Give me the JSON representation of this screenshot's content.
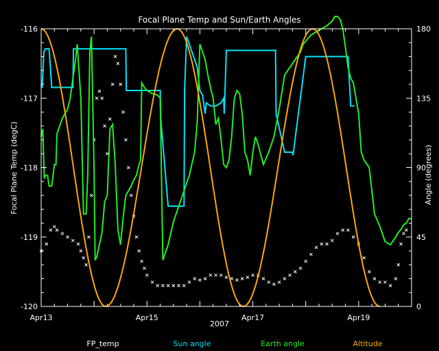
{
  "chart_data": {
    "type": "line",
    "title": "Focal Plane Temp and Sun/Earth Angles",
    "xlabel": "2007",
    "ylabel_left": "Focal Plane Temp (degC)",
    "ylabel_right": "Angle (degrees)",
    "ylim_left": [
      -120,
      -116
    ],
    "ylim_right": [
      0,
      180
    ],
    "xlim_days": [
      13.0,
      20.0
    ],
    "x_ticks": [
      {
        "label": "Apr13",
        "day": 13
      },
      {
        "label": "Apr15",
        "day": 15
      },
      {
        "label": "Apr17",
        "day": 17
      },
      {
        "label": "Apr19",
        "day": 19
      }
    ],
    "y_ticks_left": [
      {
        "label": "-116",
        "value": -116
      },
      {
        "label": "-117",
        "value": -117
      },
      {
        "label": "-118",
        "value": -118
      },
      {
        "label": "-119",
        "value": -119
      },
      {
        "label": "-120",
        "value": -120
      }
    ],
    "y_ticks_right": [
      {
        "label": "180",
        "value": 180
      },
      {
        "label": "135",
        "value": 135
      },
      {
        "label": "90",
        "value": 90
      },
      {
        "label": "45",
        "value": 45
      },
      {
        "label": "0",
        "value": 0
      }
    ],
    "colors": {
      "background": "#000000",
      "axis": "#ffffff",
      "fp_temp": "#ffffff",
      "sun": "#00e5ff",
      "earth": "#22ee22",
      "altitude": "#ffaa00"
    },
    "legend": {
      "placement": "bottom",
      "items": [
        {
          "label": "FP_temp",
          "color": "#ffffff"
        },
        {
          "label": "Sun angle",
          "color": "#00e5ff"
        },
        {
          "label": "Earth angle",
          "color": "#22ee22"
        },
        {
          "label": "Altitude",
          "color": "#ffaa00"
        }
      ]
    },
    "series": [
      {
        "name": "FP_temp",
        "axis": "left",
        "style": "points",
        "x": [
          13.0,
          13.1,
          13.18,
          13.25,
          13.3,
          13.4,
          13.5,
          13.6,
          13.7,
          13.75,
          13.8,
          13.85,
          13.9,
          13.95,
          14.0,
          14.05,
          14.1,
          14.15,
          14.2,
          14.25,
          14.3,
          14.35,
          14.4,
          14.45,
          14.5,
          14.55,
          14.6,
          14.65,
          14.7,
          14.75,
          14.8,
          14.85,
          14.9,
          14.95,
          15.0,
          15.1,
          15.2,
          15.3,
          15.4,
          15.5,
          15.6,
          15.7,
          15.8,
          15.9,
          16.0,
          16.1,
          16.2,
          16.3,
          16.4,
          16.5,
          16.6,
          16.7,
          16.8,
          16.9,
          17.0,
          17.1,
          17.2,
          17.3,
          17.4,
          17.5,
          17.6,
          17.7,
          17.8,
          17.9,
          18.0,
          18.1,
          18.2,
          18.3,
          18.4,
          18.5,
          18.6,
          18.7,
          18.8,
          18.9,
          19.0,
          19.1,
          19.2,
          19.3,
          19.4,
          19.5,
          19.6,
          19.7,
          19.75,
          19.8,
          19.85,
          19.9
        ],
        "y": [
          -119.2,
          -119.1,
          -118.9,
          -118.85,
          -118.9,
          -118.95,
          -119.0,
          -119.05,
          -119.1,
          -119.2,
          -119.3,
          -119.4,
          -119.0,
          -118.4,
          -117.6,
          -117.0,
          -116.9,
          -117.0,
          -117.4,
          -117.8,
          -117.3,
          -116.8,
          -116.4,
          -116.5,
          -116.8,
          -117.2,
          -117.6,
          -118.0,
          -118.4,
          -118.7,
          -119.0,
          -119.2,
          -119.35,
          -119.45,
          -119.55,
          -119.65,
          -119.7,
          -119.7,
          -119.7,
          -119.7,
          -119.7,
          -119.7,
          -119.65,
          -119.6,
          -119.62,
          -119.6,
          -119.55,
          -119.55,
          -119.55,
          -119.58,
          -119.6,
          -119.62,
          -119.6,
          -119.58,
          -119.55,
          -119.55,
          -119.6,
          -119.65,
          -119.68,
          -119.65,
          -119.6,
          -119.55,
          -119.5,
          -119.45,
          -119.35,
          -119.25,
          -119.15,
          -119.1,
          -119.1,
          -119.05,
          -118.95,
          -118.9,
          -118.9,
          -119.0,
          -119.1,
          -119.3,
          -119.5,
          -119.6,
          -119.65,
          -119.65,
          -119.7,
          -119.6,
          -119.4,
          -119.1,
          -118.95,
          -118.9
        ]
      },
      {
        "name": "Sun angle",
        "axis": "right",
        "style": "line",
        "x": [
          13.0,
          13.02,
          13.05,
          13.08,
          13.1,
          13.15,
          13.2,
          13.3,
          13.4,
          13.5,
          13.6,
          13.61,
          13.65,
          13.8,
          14.0,
          14.2,
          14.4,
          14.5,
          14.55,
          14.6,
          14.61,
          14.8,
          15.0,
          15.2,
          15.25,
          15.26,
          15.4,
          15.5,
          15.6,
          15.7,
          15.71,
          15.75,
          15.8,
          15.85,
          15.9,
          15.95,
          16.0,
          16.05,
          16.1,
          16.12,
          16.2,
          16.3,
          16.4,
          16.45,
          16.46,
          16.5,
          16.7,
          16.8,
          16.9,
          17.0,
          17.05,
          17.1,
          17.15,
          17.2,
          17.25,
          17.3,
          17.35,
          17.4,
          17.43,
          17.44,
          17.6,
          17.7,
          17.75,
          17.76,
          18.0,
          18.2,
          18.4,
          18.6,
          18.62,
          18.65,
          18.7,
          18.75,
          18.8,
          18.85,
          18.9,
          18.92
        ],
        "y": [
          142,
          142,
          165,
          167,
          167,
          167,
          142,
          142,
          142,
          142,
          142,
          167,
          167,
          167,
          167,
          167,
          167,
          167,
          167,
          167,
          140,
          140,
          140,
          140,
          140,
          122,
          65,
          65,
          65,
          65,
          140,
          175,
          170,
          165,
          160,
          155,
          140,
          137,
          125,
          132,
          130,
          130,
          132,
          135,
          125,
          166,
          166,
          166,
          166,
          166,
          166,
          166,
          166,
          166,
          166,
          166,
          166,
          166,
          166,
          125,
          100,
          100,
          100,
          98,
          162,
          162,
          162,
          162,
          162,
          162,
          162,
          162,
          162,
          130,
          130,
          130
        ]
      },
      {
        "name": "Earth angle",
        "axis": "right",
        "style": "line",
        "x": [
          13.0,
          13.03,
          13.06,
          13.08,
          13.12,
          13.15,
          13.2,
          13.25,
          13.28,
          13.3,
          13.4,
          13.5,
          13.55,
          13.6,
          13.65,
          13.68,
          13.75,
          13.8,
          13.85,
          13.88,
          13.92,
          13.95,
          14.0,
          14.02,
          14.05,
          14.1,
          14.15,
          14.2,
          14.25,
          14.3,
          14.35,
          14.4,
          14.45,
          14.5,
          14.55,
          14.6,
          14.65,
          14.7,
          14.75,
          14.8,
          14.85,
          14.88,
          14.9,
          14.95,
          15.0,
          15.1,
          15.2,
          15.25,
          15.3,
          15.4,
          15.5,
          15.6,
          15.7,
          15.8,
          15.9,
          15.95,
          16.0,
          16.05,
          16.1,
          16.15,
          16.2,
          16.25,
          16.3,
          16.35,
          16.4,
          16.45,
          16.5,
          16.55,
          16.6,
          16.65,
          16.7,
          16.75,
          16.8,
          16.85,
          16.9,
          16.95,
          17.0,
          17.05,
          17.1,
          17.2,
          17.3,
          17.4,
          17.5,
          17.6,
          17.7,
          17.8,
          17.9,
          17.95,
          18.0,
          18.05,
          18.1,
          18.2,
          18.3,
          18.4,
          18.5,
          18.55,
          18.6,
          18.65,
          18.7,
          18.75,
          18.8,
          18.85,
          18.9,
          18.95,
          19.0,
          19.05,
          19.1,
          19.2,
          19.3,
          19.4,
          19.5,
          19.6,
          19.7,
          19.75,
          19.8,
          19.85,
          19.9,
          19.95,
          20.0
        ],
        "y": [
          110,
          115,
          83,
          85,
          85,
          78,
          78,
          92,
          92,
          112,
          122,
          128,
          135,
          148,
          160,
          170,
          135,
          60,
          60,
          85,
          165,
          175,
          90,
          30,
          32,
          40,
          48,
          68,
          72,
          115,
          118,
          92,
          50,
          40,
          58,
          72,
          75,
          78,
          82,
          85,
          92,
          95,
          145,
          142,
          140,
          138,
          137,
          135,
          30,
          40,
          55,
          65,
          75,
          85,
          100,
          120,
          170,
          165,
          160,
          150,
          142,
          135,
          118,
          122,
          108,
          92,
          90,
          95,
          110,
          135,
          140,
          138,
          125,
          100,
          95,
          85,
          100,
          110,
          105,
          92,
          100,
          110,
          128,
          150,
          155,
          160,
          165,
          170,
          172,
          174,
          176,
          178,
          180,
          182,
          185,
          188,
          188,
          186,
          180,
          168,
          155,
          148,
          145,
          135,
          125,
          100,
          95,
          90,
          60,
          52,
          42,
          40,
          45,
          48,
          50,
          53,
          54,
          57,
          57
        ]
      },
      {
        "name": "Altitude",
        "axis": "right",
        "style": "line",
        "shape": "arches",
        "peaks": [
          [
            13.0,
            180
          ],
          [
            15.57,
            180
          ],
          [
            18.13,
            180
          ]
        ],
        "troughs": [
          [
            14.22,
            0
          ],
          [
            16.82,
            0
          ],
          [
            19.4,
            0
          ]
        ],
        "x_end": 19.42
      }
    ]
  }
}
